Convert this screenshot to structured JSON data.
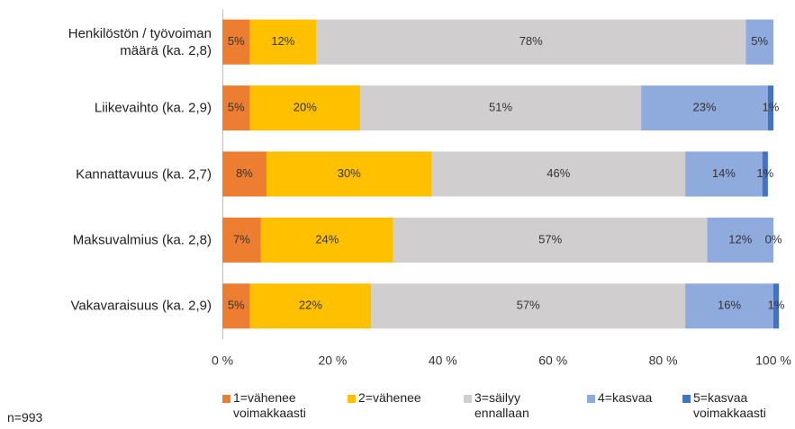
{
  "chart_data": {
    "type": "stacked_barh",
    "categories": [
      "Henkilöstön / työvoiman määrä (ka. 2,8)",
      "Liikevaihto (ka. 2,9)",
      "Kannattavuus (ka. 2,7)",
      "Maksuvalmius (ka. 2,8)",
      "Vakavaraisuus (ka. 2,9)"
    ],
    "series": [
      {
        "name": "1=vähenee voimakkaasti",
        "color": "#ed7d31",
        "values": [
          5,
          5,
          8,
          7,
          5
        ],
        "value_labels": [
          "5%",
          "5%",
          "8%",
          "7%",
          "5%"
        ]
      },
      {
        "name": "2=vähenee",
        "color": "#ffc000",
        "values": [
          12,
          20,
          30,
          24,
          22
        ],
        "value_labels": [
          "12%",
          "20%",
          "30%",
          "24%",
          "22%"
        ]
      },
      {
        "name": "3=säilyy ennallaan",
        "color": "#d0cece",
        "values": [
          78,
          51,
          46,
          57,
          57
        ],
        "value_labels": [
          "78%",
          "51%",
          "46%",
          "57%",
          "57%"
        ]
      },
      {
        "name": "4=kasvaa",
        "color": "#8faadc",
        "values": [
          5,
          23,
          14,
          12,
          16
        ],
        "value_labels": [
          "5%",
          "23%",
          "14%",
          "12%",
          "16%"
        ]
      },
      {
        "name": "5=kasvaa voimakkaasti",
        "color": "#4472c4",
        "values": [
          null,
          1,
          1,
          0,
          1
        ],
        "value_labels": [
          null,
          "1%",
          "1%",
          "0%",
          "1%"
        ]
      }
    ],
    "xlim": [
      0,
      100
    ],
    "xticks": [
      {
        "value": 0,
        "label": "0 %"
      },
      {
        "value": 20,
        "label": "20 %"
      },
      {
        "value": 40,
        "label": "40 %"
      },
      {
        "value": 60,
        "label": "60 %"
      },
      {
        "value": 80,
        "label": "80 %"
      },
      {
        "value": 100,
        "label": "100 %"
      }
    ],
    "grid": false,
    "legend": "bottom",
    "note": "n=993"
  }
}
